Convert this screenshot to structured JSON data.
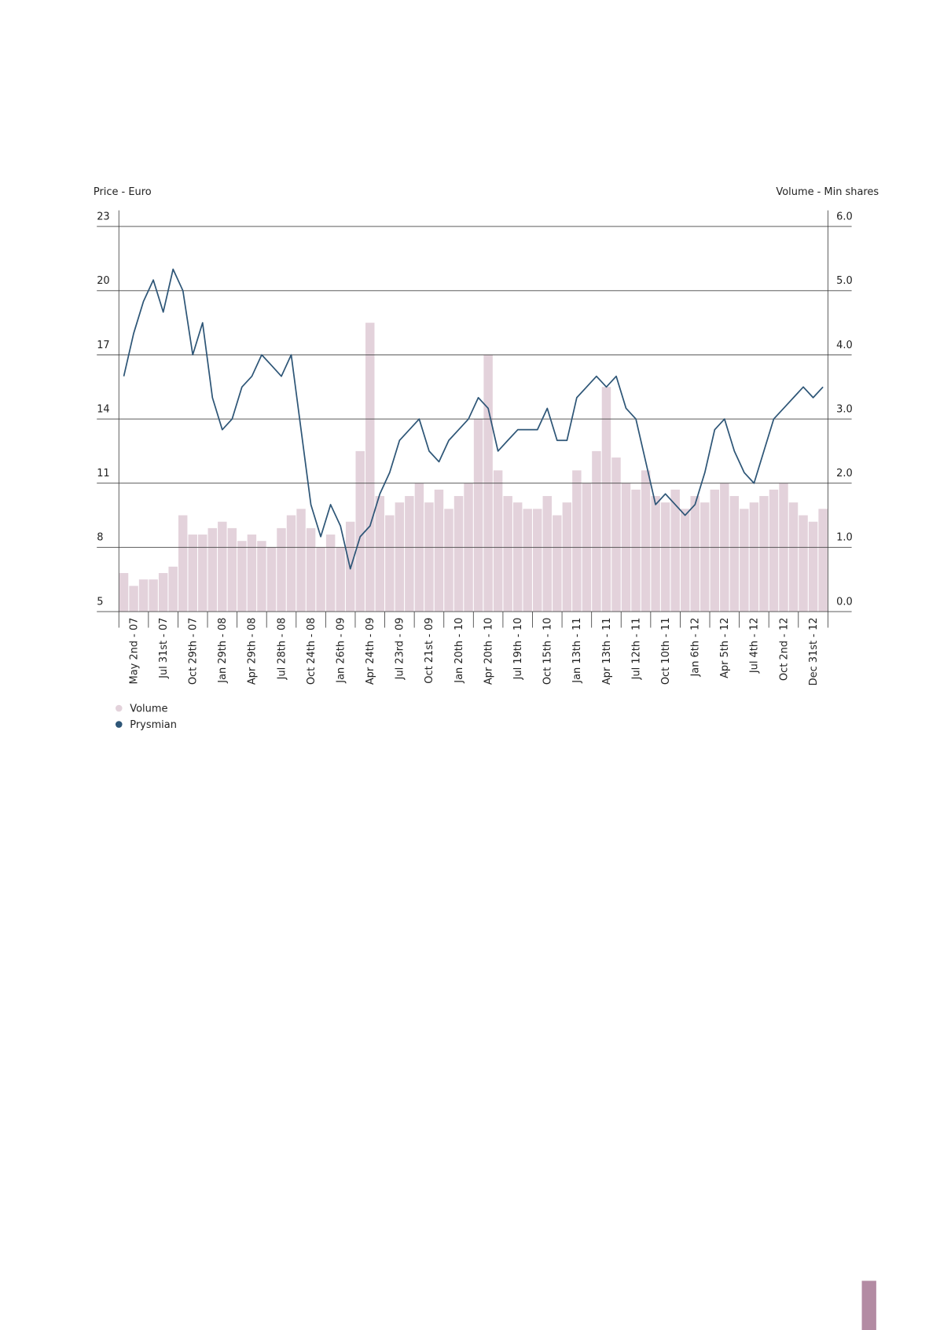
{
  "chart_data": {
    "type": "combo",
    "y_label": "Price - Euro",
    "y2_label": "Volume - Min shares",
    "categories": [
      "May 2nd - 07",
      null,
      null,
      "Jul 31st - 07",
      null,
      null,
      "Oct 29th - 07",
      null,
      null,
      "Jan 29th - 08",
      null,
      null,
      "Apr 29th - 08",
      null,
      null,
      "Jul 28th - 08",
      null,
      null,
      "Oct 24th - 08",
      null,
      null,
      "Jan 26th - 09",
      null,
      null,
      "Apr 24th - 09",
      null,
      null,
      "Jul 23rd - 09",
      null,
      null,
      "Oct 21st - 09",
      null,
      null,
      "Jan 20th - 10",
      null,
      null,
      "Apr 20th - 10",
      null,
      null,
      "Jul 19th - 10",
      null,
      null,
      "Oct 15th - 10",
      null,
      null,
      "Jan 13th - 11",
      null,
      null,
      "Apr 13th - 11",
      null,
      null,
      "Jul 12th - 11",
      null,
      null,
      "Oct 10th - 11",
      null,
      null,
      "Jan 6th - 12",
      null,
      null,
      "Apr 5th - 12",
      null,
      null,
      "Jul 4th - 12",
      null,
      null,
      "Oct 2nd - 12",
      null,
      null,
      "Dec 31st - 12",
      null,
      null
    ],
    "series": [
      {
        "name": "Volume",
        "type": "bar",
        "axis": "y2",
        "color": "#e3d2db",
        "values": [
          0.6,
          0.4,
          0.5,
          0.5,
          0.6,
          0.7,
          1.5,
          1.2,
          1.2,
          1.3,
          1.4,
          1.3,
          1.1,
          1.2,
          1.1,
          1.0,
          1.3,
          1.5,
          1.6,
          1.3,
          1.0,
          1.2,
          1.0,
          1.4,
          2.5,
          4.5,
          1.8,
          1.5,
          1.7,
          1.8,
          2.0,
          1.7,
          1.9,
          1.6,
          1.8,
          2.0,
          3.0,
          4.0,
          2.2,
          1.8,
          1.7,
          1.6,
          1.6,
          1.8,
          1.5,
          1.7,
          2.2,
          2.0,
          2.5,
          3.5,
          2.4,
          2.0,
          1.9,
          2.2,
          1.8,
          1.7,
          1.9,
          1.6,
          1.8,
          1.7,
          1.9,
          2.0,
          1.8,
          1.6,
          1.7,
          1.8,
          1.9,
          2.0,
          1.7,
          1.5,
          1.4,
          1.6
        ]
      },
      {
        "name": "Prysmian",
        "type": "line",
        "color": "#2e5677",
        "values": [
          16,
          18,
          19.5,
          20.5,
          19,
          21,
          20,
          17,
          18.5,
          15,
          13.5,
          14,
          15.5,
          16,
          17,
          16.5,
          16,
          17,
          13.5,
          10,
          8.5,
          10,
          9,
          7,
          8.5,
          9,
          10.5,
          11.5,
          13,
          13.5,
          14,
          12.5,
          12,
          13,
          13.5,
          14,
          15,
          14.5,
          12.5,
          13,
          13.5,
          13.5,
          13.5,
          14.5,
          13,
          13,
          15,
          15.5,
          16,
          15.5,
          16,
          14.5,
          14,
          12,
          10,
          10.5,
          10,
          9.5,
          10,
          11.5,
          13.5,
          14,
          12.5,
          11.5,
          11,
          12.5,
          14,
          14.5,
          15,
          15.5,
          15,
          15.5
        ]
      }
    ],
    "ylim": [
      5,
      23
    ],
    "yticks": [
      5,
      8,
      11,
      14,
      17,
      20,
      23
    ],
    "y2lim": [
      0,
      6
    ],
    "y2ticks": [
      {
        "value": 0,
        "label": "0.0"
      },
      {
        "value": 1,
        "label": "1.0"
      },
      {
        "value": 2,
        "label": "2.0"
      },
      {
        "value": 3,
        "label": "3.0"
      },
      {
        "value": 4,
        "label": "4.0"
      },
      {
        "value": 5,
        "label": "5.0"
      },
      {
        "value": 6,
        "label": "6.0"
      }
    ],
    "grid": true
  }
}
